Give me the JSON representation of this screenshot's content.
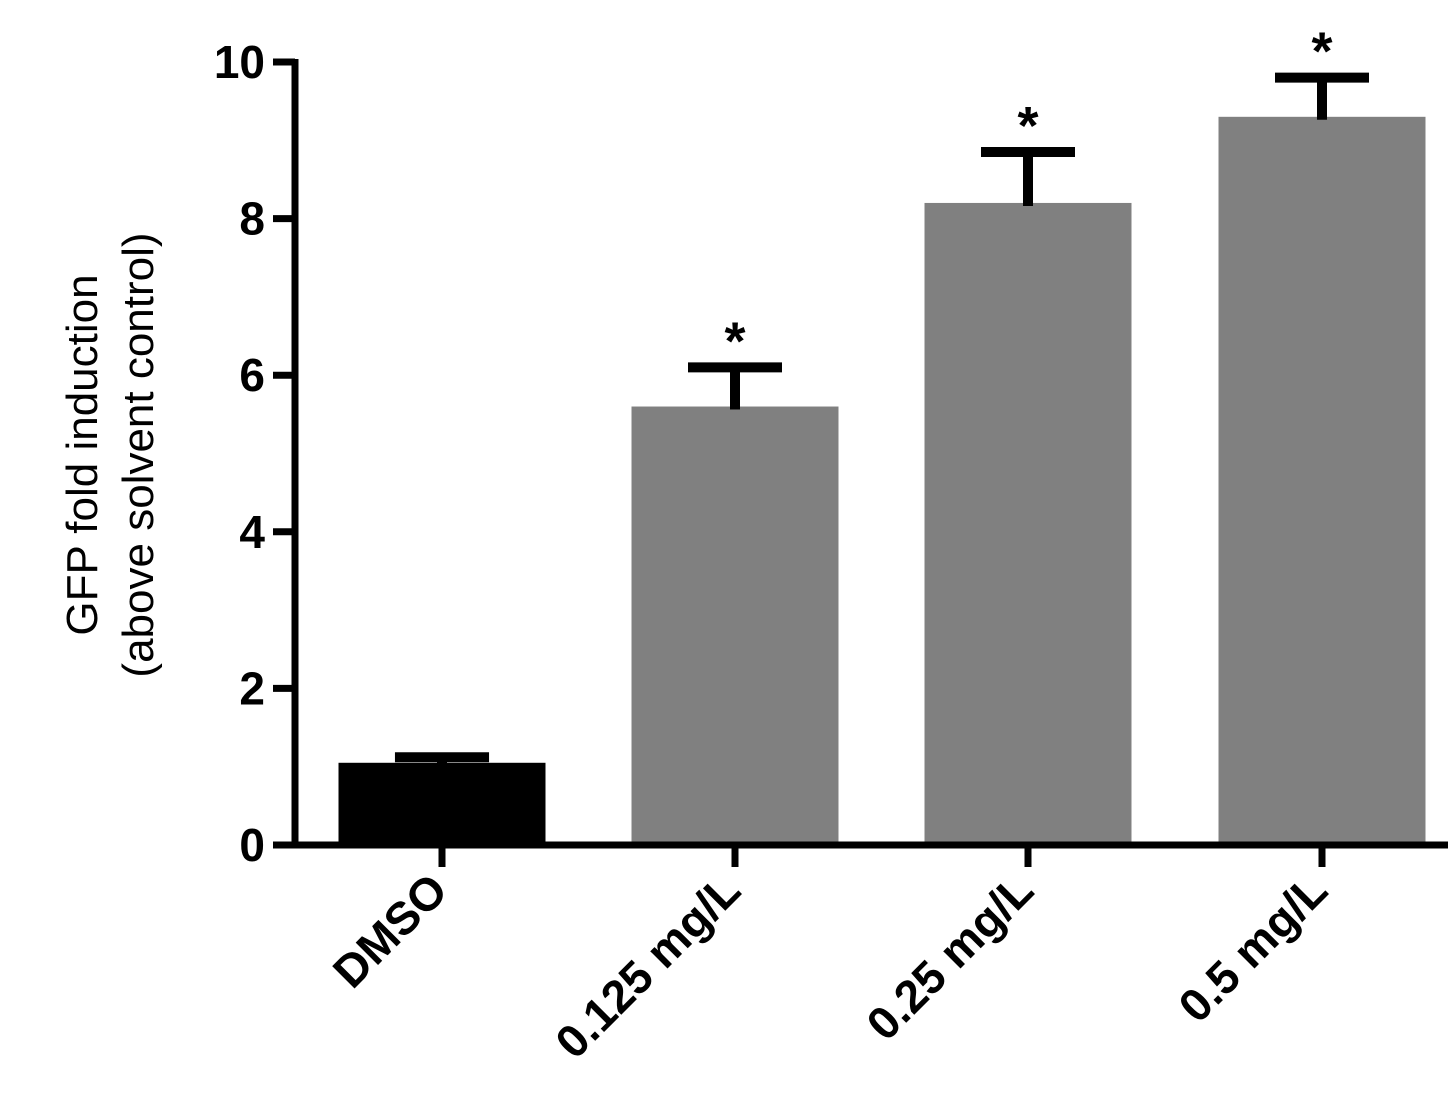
{
  "chart_data": {
    "type": "bar",
    "categories": [
      "DMSO",
      "0.125 mg/L",
      "0.25 mg/L",
      "0.5 mg/L"
    ],
    "values": [
      1.05,
      5.6,
      8.2,
      9.3
    ],
    "error_upper": [
      0.07,
      0.5,
      0.65,
      0.5
    ],
    "significance": [
      "",
      "*",
      "*",
      "*"
    ],
    "colors": [
      "#000000",
      "#808080",
      "#808080",
      "#808080"
    ],
    "title": "",
    "xlabel": "",
    "ylabel": [
      "GFP fold induction",
      "(above solvent control)"
    ],
    "ylim": [
      0,
      10
    ],
    "yticks": [
      0,
      2,
      4,
      6,
      8,
      10
    ],
    "grid": false,
    "legend": "none"
  }
}
